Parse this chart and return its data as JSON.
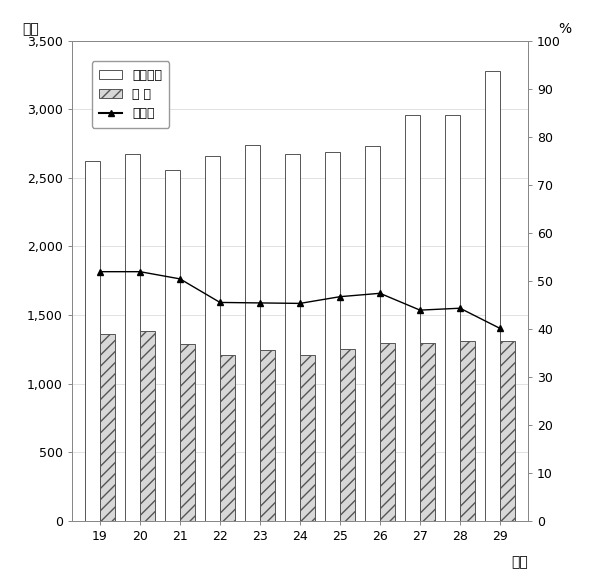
{
  "years": [
    19,
    20,
    21,
    22,
    23,
    24,
    25,
    26,
    27,
    28,
    29
  ],
  "sainyuu": [
    2620,
    2670,
    2560,
    2660,
    2740,
    2670,
    2690,
    2730,
    2960,
    2960,
    3280
  ],
  "shizei": [
    1360,
    1385,
    1290,
    1210,
    1245,
    1210,
    1255,
    1295,
    1300,
    1310,
    1315
  ],
  "kosei_hi": [
    51.9,
    51.9,
    50.4,
    45.5,
    45.4,
    45.3,
    46.7,
    47.4,
    43.9,
    44.3,
    40.1
  ],
  "left_ylim": [
    0,
    3500
  ],
  "right_ylim": [
    0,
    100
  ],
  "left_yticks": [
    0,
    500,
    1000,
    1500,
    2000,
    2500,
    3000,
    3500
  ],
  "right_yticks": [
    0,
    10,
    20,
    30,
    40,
    50,
    60,
    70,
    80,
    90,
    100
  ],
  "ylabel_left": "億円",
  "ylabel_right": "%",
  "xlabel": "年度",
  "legend_sainyuu": "歳入総額",
  "legend_shizei": "市 税",
  "legend_kosei": "構成比",
  "bar_width": 0.38,
  "white_bar_color": "#ffffff",
  "white_bar_edge": "#555555",
  "hatch_bar_color": "#d8d8d8",
  "hatch_pattern": "///",
  "line_color": "#000000",
  "bg_color": "#ffffff",
  "plot_bg": "#ffffff",
  "grid_color": "#cccccc",
  "spine_color": "#888888",
  "fontsize_tick": 9,
  "fontsize_label": 10,
  "fontsize_legend": 9
}
